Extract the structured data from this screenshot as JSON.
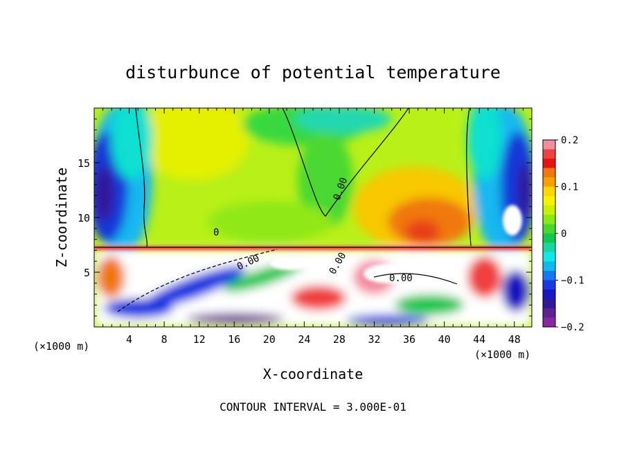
{
  "chart_data": {
    "type": "heatmap",
    "title": "disturbunce of potential temperature",
    "xlabel": "X-coordinate",
    "ylabel": "Z-coordinate",
    "x_unit": "(×1000 m)",
    "x_unit_right": "(×1000 m)",
    "footer": "CONTOUR INTERVAL = 3.000E-01",
    "xlim": [
      0,
      50
    ],
    "ylim": [
      0,
      20
    ],
    "x_ticks": [
      4,
      8,
      12,
      16,
      20,
      24,
      28,
      32,
      36,
      40,
      44,
      48
    ],
    "y_ticks": [
      5,
      10,
      15
    ],
    "colorbar": {
      "range": [
        -0.2,
        0.2
      ],
      "tick_values": [
        0.2,
        0.1,
        0,
        -0.1,
        -0.2
      ],
      "tick_labels": [
        "0.2",
        "0.1",
        "0",
        "−0.1",
        "−0.2"
      ],
      "colors": [
        "#f48ca0",
        "#f04040",
        "#e81414",
        "#f07810",
        "#f8a000",
        "#fcd800",
        "#f4f400",
        "#c8f000",
        "#88e818",
        "#44d830",
        "#10c850",
        "#14d8a0",
        "#10e8e8",
        "#10b8f0",
        "#1478f0",
        "#1838e0",
        "#1818c0",
        "#301898",
        "#602090",
        "#8828a0"
      ]
    },
    "contour_labels": [
      "0.00",
      "0.00",
      "0.00",
      "0.00",
      "0"
    ],
    "notes": "Upper layer (z > 7.5 km): warm anomaly 0.05–0.15 around x≈36–42 and x≈8–16; cold anomalies −0.1 to −0.2 near lateral boundaries x<6 and x>44. Lower layer (z < 7.5 km): turbulent mixed region with values exceeding ±0.2."
  }
}
